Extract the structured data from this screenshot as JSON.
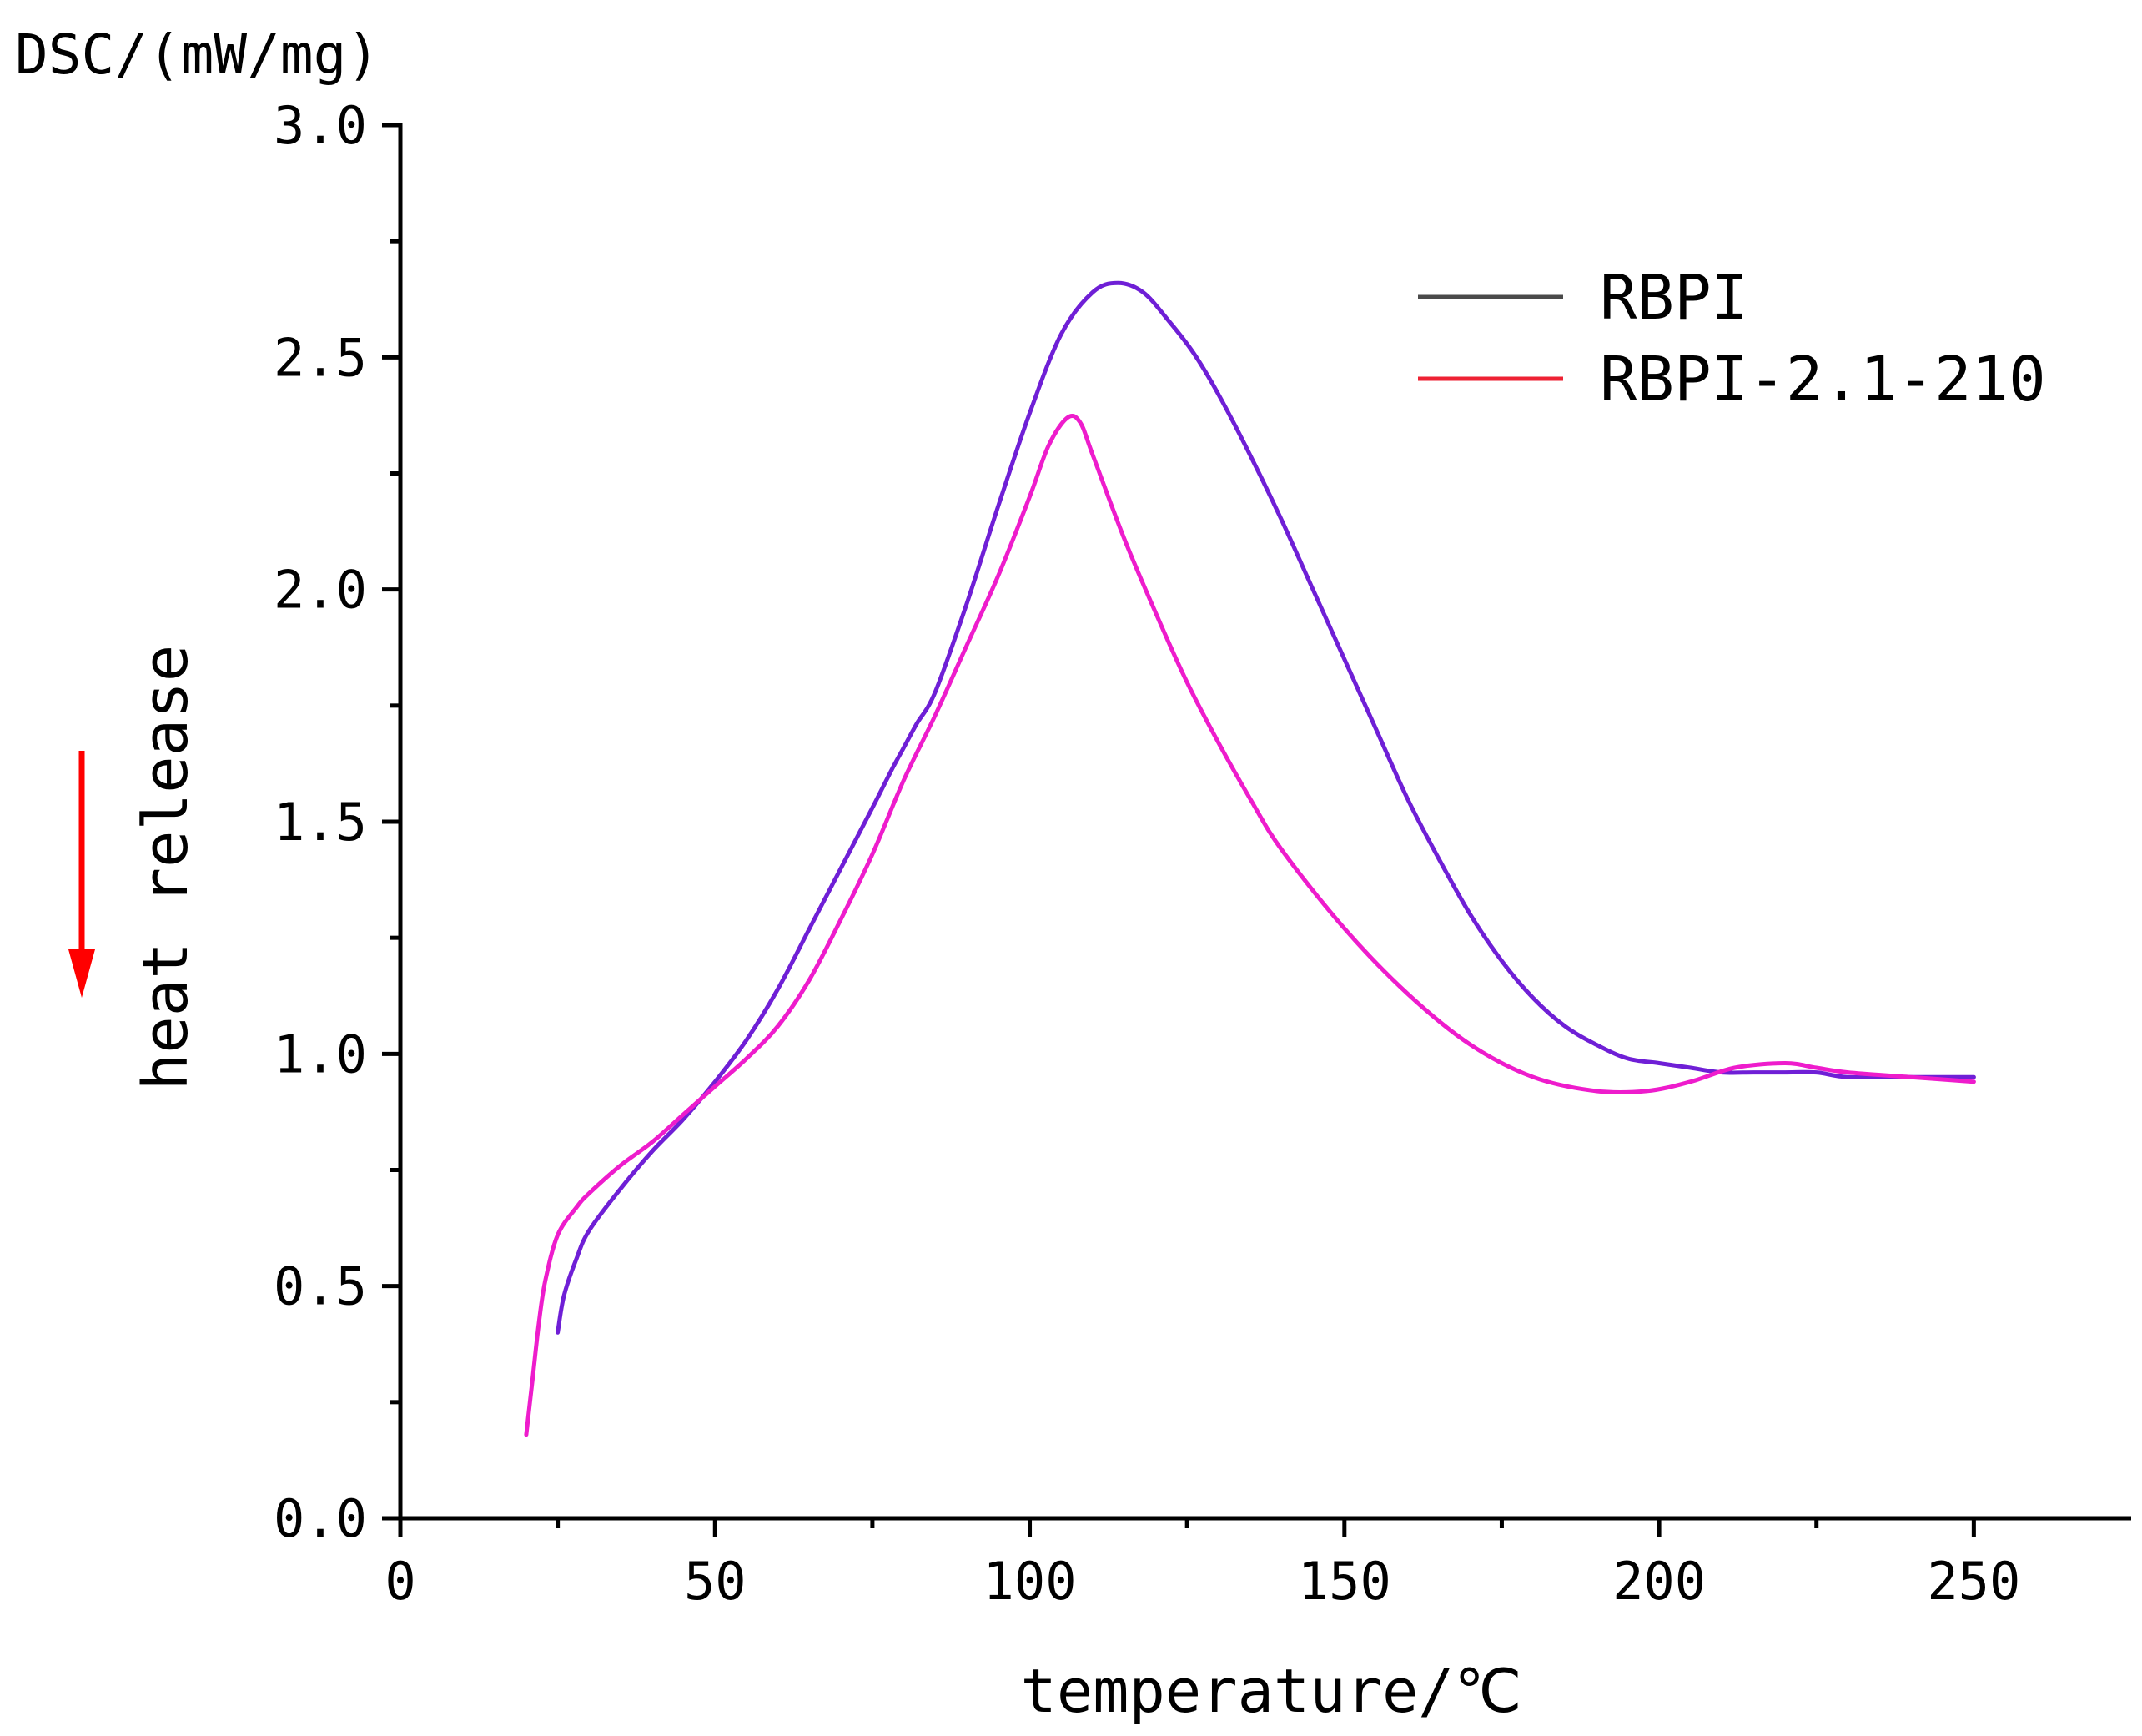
{
  "chart_data": {
    "type": "line",
    "title": "",
    "xlabel": "temperature/℃",
    "ylabel": "DSC/(mW/mg)",
    "side_annotation": "heat release",
    "annotation_arrow_direction": "down",
    "xlim": [
      0,
      275
    ],
    "ylim": [
      0.0,
      3.0
    ],
    "x_ticks": [
      0,
      50,
      100,
      150,
      200,
      250
    ],
    "x_tick_labels": [
      "0",
      "50",
      "100",
      "150",
      "200",
      "250"
    ],
    "y_ticks": [
      0.0,
      0.5,
      1.0,
      1.5,
      2.0,
      2.5,
      3.0
    ],
    "y_tick_labels": [
      "0.0",
      "0.5",
      "1.0",
      "1.5",
      "2.0",
      "2.5",
      "3.0"
    ],
    "grid": false,
    "legend_position": "top-right",
    "colors": {
      "axis": "#000000",
      "arrow": "#ff0000"
    },
    "series": [
      {
        "name": "RBPI",
        "color": "#6f1fd6",
        "legend_color": "#4a4a4a",
        "x": [
          25,
          26,
          28,
          30,
          35,
          40,
          45,
          50,
          55,
          60,
          65,
          70,
          75,
          78,
          80,
          82,
          85,
          90,
          95,
          100,
          105,
          110,
          114,
          118,
          122,
          126,
          130,
          135,
          140,
          145,
          150,
          155,
          160,
          165,
          170,
          175,
          180,
          185,
          190,
          195,
          200,
          205,
          210,
          215,
          220,
          225,
          230,
          240,
          250
        ],
        "y": [
          0.4,
          0.48,
          0.56,
          0.62,
          0.71,
          0.79,
          0.86,
          0.94,
          1.03,
          1.14,
          1.27,
          1.4,
          1.53,
          1.61,
          1.66,
          1.71,
          1.78,
          1.97,
          2.18,
          2.38,
          2.55,
          2.64,
          2.66,
          2.64,
          2.58,
          2.51,
          2.42,
          2.29,
          2.15,
          2.0,
          1.85,
          1.7,
          1.55,
          1.42,
          1.3,
          1.2,
          1.12,
          1.06,
          1.02,
          0.99,
          0.98,
          0.97,
          0.96,
          0.96,
          0.96,
          0.96,
          0.95,
          0.95,
          0.95
        ]
      },
      {
        "name": "RBPI-2.1-210",
        "color": "#ee1ccc",
        "legend_color": "#ee2233",
        "x": [
          20,
          21,
          22,
          23,
          25,
          28,
          30,
          35,
          40,
          45,
          50,
          55,
          60,
          65,
          70,
          75,
          80,
          85,
          90,
          95,
          100,
          103,
          106,
          108,
          110,
          115,
          120,
          125,
          130,
          135,
          140,
          150,
          160,
          170,
          180,
          190,
          198,
          205,
          212,
          220,
          225,
          230,
          240,
          250
        ],
        "y": [
          0.18,
          0.3,
          0.42,
          0.51,
          0.61,
          0.67,
          0.7,
          0.76,
          0.81,
          0.87,
          0.93,
          0.99,
          1.06,
          1.16,
          1.29,
          1.43,
          1.59,
          1.73,
          1.88,
          2.03,
          2.2,
          2.31,
          2.37,
          2.36,
          2.29,
          2.11,
          1.95,
          1.8,
          1.67,
          1.55,
          1.44,
          1.27,
          1.13,
          1.02,
          0.95,
          0.92,
          0.92,
          0.94,
          0.97,
          0.98,
          0.97,
          0.96,
          0.95,
          0.94
        ]
      }
    ]
  }
}
